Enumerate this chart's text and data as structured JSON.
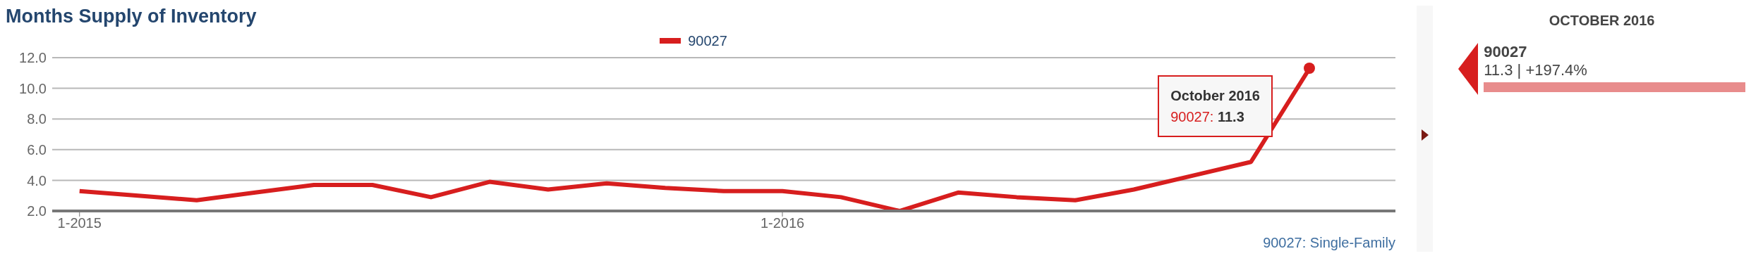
{
  "chart_data": {
    "type": "line",
    "title": "Months Supply of Inventory",
    "x": [
      "2015-01",
      "2015-02",
      "2015-03",
      "2015-04",
      "2015-05",
      "2015-06",
      "2015-07",
      "2015-08",
      "2015-09",
      "2015-10",
      "2015-11",
      "2015-12",
      "2016-01",
      "2016-02",
      "2016-03",
      "2016-04",
      "2016-05",
      "2016-06",
      "2016-07",
      "2016-08",
      "2016-09",
      "2016-10"
    ],
    "series": [
      {
        "name": "90027",
        "color": "#d71e1e",
        "values": [
          3.3,
          3.0,
          2.7,
          3.2,
          3.7,
          3.7,
          2.9,
          3.9,
          3.4,
          3.8,
          3.5,
          3.3,
          3.3,
          2.9,
          2.0,
          3.2,
          2.9,
          2.7,
          3.4,
          4.3,
          5.2,
          11.3
        ]
      }
    ],
    "xlim": [
      "2014-12-17",
      "2016-11-15"
    ],
    "xticks": [
      {
        "value": "2015-01",
        "label": "1-2015"
      },
      {
        "value": "2016-01",
        "label": "1-2016"
      }
    ],
    "ylim": [
      2,
      12
    ],
    "yticks": [
      {
        "value": 2,
        "label": "2.0"
      },
      {
        "value": 4,
        "label": "4.0"
      },
      {
        "value": 6,
        "label": "6.0"
      },
      {
        "value": 8,
        "label": "8.0"
      },
      {
        "value": 10,
        "label": "10.0"
      },
      {
        "value": 12,
        "label": "12.0"
      }
    ],
    "grid": "y",
    "legend": "top",
    "marker": "none",
    "line_style": "solid",
    "annotations": [
      "October 2016",
      "90027: 11.3",
      "90027: Single-Family",
      "OCTOBER 2016",
      "90027",
      "11.3 | +197.4%"
    ]
  }
}
